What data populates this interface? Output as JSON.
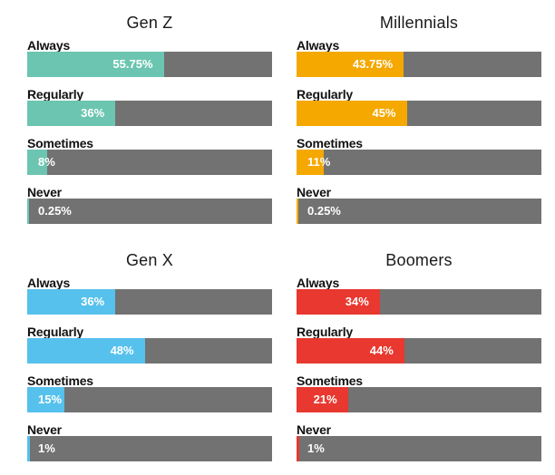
{
  "chart_data": [
    {
      "type": "bar",
      "title": "Gen Z",
      "color": "#6cc5b0",
      "categories": [
        "Always",
        "Regularly",
        "Sometimes",
        "Never"
      ],
      "values": [
        55.75,
        36,
        8,
        0.25
      ],
      "value_labels": [
        "55.75%",
        "36%",
        "8%",
        "0.25%"
      ],
      "xlim": [
        0,
        100
      ]
    },
    {
      "type": "bar",
      "title": "Millennials",
      "color": "#f5a800",
      "categories": [
        "Always",
        "Regularly",
        "Sometimes",
        "Never"
      ],
      "values": [
        43.75,
        45,
        11,
        0.25
      ],
      "value_labels": [
        "43.75%",
        "45%",
        "11%",
        "0.25%"
      ],
      "xlim": [
        0,
        100
      ]
    },
    {
      "type": "bar",
      "title": "Gen X",
      "color": "#56c1ec",
      "categories": [
        "Always",
        "Regularly",
        "Sometimes",
        "Never"
      ],
      "values": [
        36,
        48,
        15,
        1
      ],
      "value_labels": [
        "36%",
        "48%",
        "15%",
        "1%"
      ],
      "xlim": [
        0,
        100
      ]
    },
    {
      "type": "bar",
      "title": "Boomers",
      "color": "#e8382f",
      "categories": [
        "Always",
        "Regularly",
        "Sometimes",
        "Never"
      ],
      "values": [
        34,
        44,
        21,
        1
      ],
      "value_labels": [
        "34%",
        "44%",
        "21%",
        "1%"
      ],
      "xlim": [
        0,
        100
      ]
    }
  ]
}
